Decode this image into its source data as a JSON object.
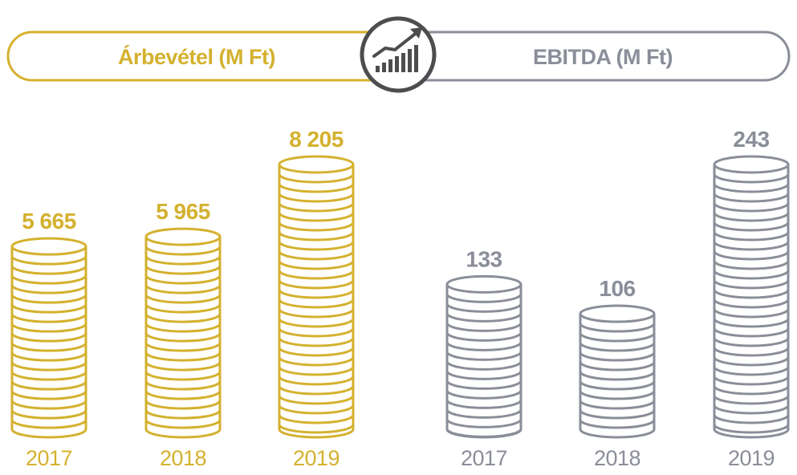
{
  "chart_data": [
    {
      "type": "bar",
      "title": "Árbevétel (M Ft)",
      "categories": [
        "2017",
        "2018",
        "2019"
      ],
      "values": [
        5665,
        5965,
        8205
      ],
      "value_labels": [
        "5 665",
        "5 965",
        "8 205"
      ],
      "color": "#d4b12f",
      "grid": false
    },
    {
      "type": "bar",
      "title": "EBITDA (M Ft)",
      "categories": [
        "2017",
        "2018",
        "2019"
      ],
      "values": [
        133,
        106,
        243
      ],
      "value_labels": [
        "133",
        "106",
        "243"
      ],
      "color": "#8a8e99",
      "grid": false
    }
  ],
  "center_icon": "rising-bar-chart-icon",
  "colors": {
    "icon": "#4d4d4f",
    "background": "#ffffff"
  }
}
